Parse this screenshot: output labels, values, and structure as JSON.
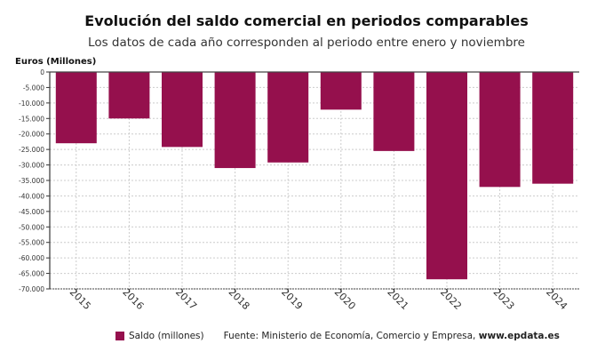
{
  "chart_data": {
    "type": "bar",
    "title": "Evolución del saldo comercial en periodos comparables",
    "subtitle": "Los datos de cada año corresponden al periodo entre enero y noviembre",
    "ylabel": "Euros (Millones)",
    "categories": [
      "2015",
      "2016",
      "2017",
      "2018",
      "2019",
      "2020",
      "2021",
      "2022",
      "2023",
      "2024"
    ],
    "series": [
      {
        "name": "Saldo (millones)",
        "values": [
          -23000,
          -15000,
          -24200,
          -31000,
          -29200,
          -12150,
          -25500,
          -66900,
          -37100,
          -36050
        ]
      }
    ],
    "ylim": [
      -70000,
      0
    ],
    "yticks": [
      0,
      -5000,
      -10000,
      -15000,
      -20000,
      -25000,
      -30000,
      -35000,
      -40000,
      -45000,
      -50000,
      -55000,
      -60000,
      -65000,
      -70000
    ],
    "ytick_labels": [
      "0",
      "-5.000",
      "-10.000",
      "-15.000",
      "-20.000",
      "-25.000",
      "-30.000",
      "-35.000",
      "-40.000",
      "-45.000",
      "-50.000",
      "-55.000",
      "-60.000",
      "-65.000",
      "-70.000"
    ],
    "grid": true,
    "legend_position": "bottom",
    "bar_color": "#95104d"
  },
  "footer": {
    "source": "Fuente: Ministerio de Economía, Comercio y Empresa,",
    "site": "www.epdata.es"
  }
}
